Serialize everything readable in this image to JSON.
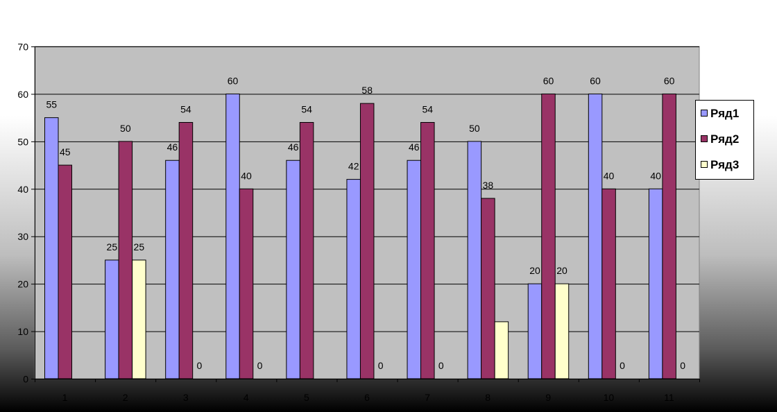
{
  "chart_data": {
    "type": "bar",
    "categories": [
      "1",
      "2",
      "3",
      "4",
      "5",
      "6",
      "7",
      "8",
      "9",
      "10",
      "11"
    ],
    "series": [
      {
        "name": "Ряд1",
        "color": "#9999ff",
        "values": [
          55,
          25,
          46,
          60,
          46,
          42,
          46,
          50,
          20,
          60,
          40
        ],
        "labels": [
          "55",
          "25",
          "46",
          "60",
          "46",
          "42",
          "46",
          "50",
          "20",
          "60",
          "40"
        ]
      },
      {
        "name": "Ряд2",
        "color": "#993366",
        "values": [
          45,
          50,
          54,
          40,
          54,
          58,
          54,
          38,
          60,
          40,
          60
        ],
        "labels": [
          "45",
          "50",
          "54",
          "40",
          "54",
          "58",
          "54",
          "38",
          "60",
          "40",
          "60"
        ]
      },
      {
        "name": "Ряд3",
        "color": "#ffffcc",
        "values": [
          null,
          25,
          0,
          0,
          null,
          0,
          0,
          12,
          20,
          0,
          0
        ],
        "labels": [
          "",
          "25",
          "0",
          "0",
          "",
          "0",
          "0",
          "",
          "20",
          "0",
          "0"
        ]
      }
    ],
    "yticks": [
      0,
      10,
      20,
      30,
      40,
      50,
      60,
      70
    ],
    "ylim": [
      0,
      70
    ],
    "title": "",
    "xlabel": "",
    "ylabel": "",
    "grid": true,
    "legend_position": "right",
    "plot_background": "#c0c0c0"
  }
}
